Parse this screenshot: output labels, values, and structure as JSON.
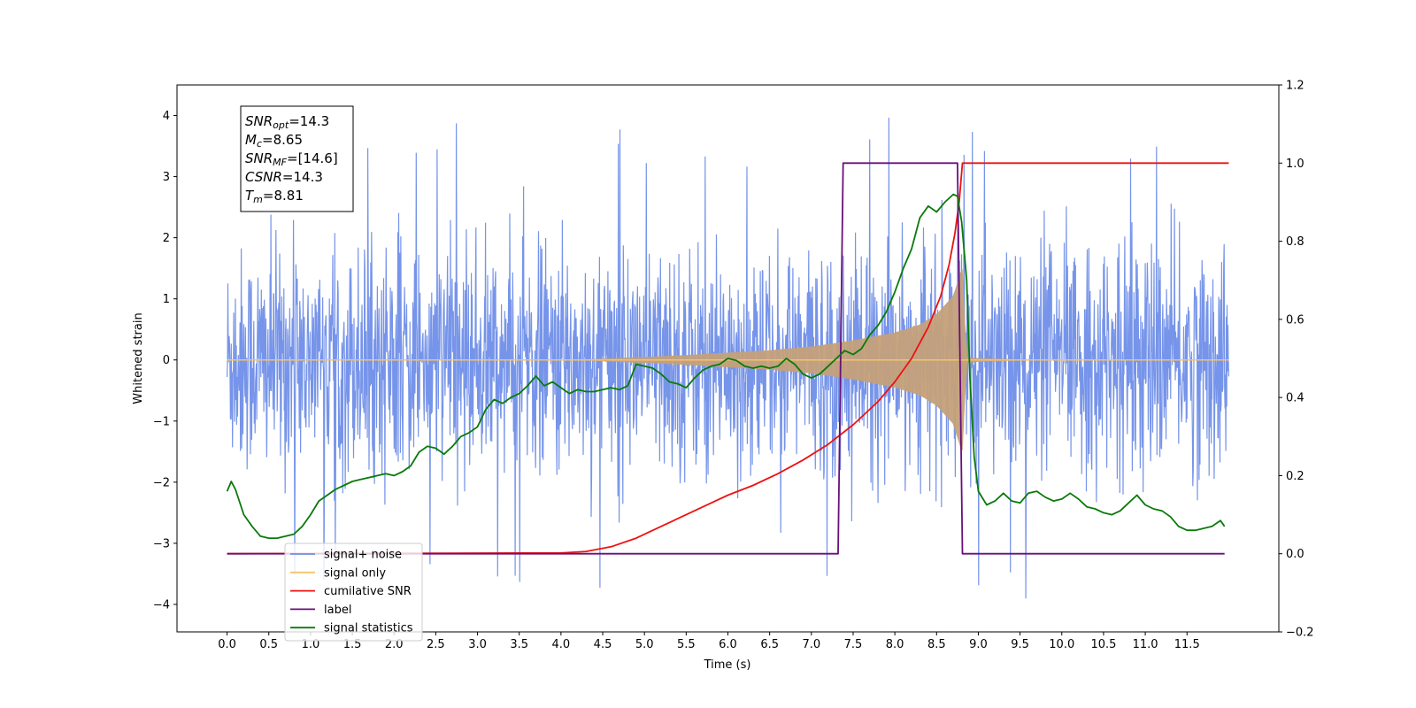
{
  "chart_data": {
    "type": "line",
    "title": "",
    "xlabel": "Time (s)",
    "ylabel": "Whitened strain",
    "y2label": "",
    "xlim": [
      -0.6,
      12.6
    ],
    "ylim": [
      -4.45,
      4.5
    ],
    "y2lim": [
      -0.2,
      1.2
    ],
    "x_ticks": [
      0.0,
      0.5,
      1.0,
      1.5,
      2.0,
      2.5,
      3.0,
      3.5,
      4.0,
      4.5,
      5.0,
      5.5,
      6.0,
      6.5,
      7.0,
      7.5,
      8.0,
      8.5,
      9.0,
      9.5,
      10.0,
      10.5,
      11.0,
      11.5
    ],
    "x_tick_labels": [
      "0.0",
      "0.5",
      "1.0",
      "1.5",
      "2.0",
      "2.5",
      "3.0",
      "3.5",
      "4.0",
      "4.5",
      "5.0",
      "5.5",
      "6.0",
      "6.5",
      "7.0",
      "7.5",
      "8.0",
      "8.5",
      "9.0",
      "9.5",
      "10.0",
      "10.5",
      "11.0",
      "11.5"
    ],
    "y_ticks": [
      -4,
      -3,
      -2,
      -1,
      0,
      1,
      2,
      3,
      4
    ],
    "y_tick_labels": [
      "−4",
      "−3",
      "−2",
      "−1",
      "0",
      "1",
      "2",
      "3",
      "4"
    ],
    "y2_ticks": [
      -0.2,
      0.0,
      0.2,
      0.4,
      0.6,
      0.8,
      1.0,
      1.2
    ],
    "y2_tick_labels": [
      "−0.2",
      "0.0",
      "0.2",
      "0.4",
      "0.6",
      "0.8",
      "1.0",
      "1.2"
    ],
    "grid": false,
    "legend_position": "lower-left",
    "annotation_lines": [
      {
        "base": "SNR",
        "sub": "opt",
        "rest": "=14.3"
      },
      {
        "base": "M",
        "sub": "c",
        "rest": "=8.65"
      },
      {
        "base": "SNR",
        "sub": "MF",
        "rest": "=[14.6]"
      },
      {
        "base": "CSNR",
        "sub": "",
        "rest": "=14.3"
      },
      {
        "base": "T",
        "sub": "m",
        "rest": "=8.81"
      }
    ],
    "series": [
      {
        "name": "signal+ noise",
        "axis": "left",
        "color": "#6f8ee8",
        "kind": "noise",
        "x_range": [
          0.0,
          12.0
        ],
        "amplitude_std": 0.9,
        "max": 4.12,
        "min": -4.05
      },
      {
        "name": "signal only",
        "axis": "left",
        "color": "#f5c26b",
        "fill_color": "#c4a07a",
        "kind": "chirp",
        "x_range": [
          0.0,
          12.0
        ],
        "peak_time": 8.81,
        "envelope": [
          [
            4.3,
            0.01
          ],
          [
            5.0,
            0.05
          ],
          [
            5.5,
            0.08
          ],
          [
            6.0,
            0.12
          ],
          [
            6.5,
            0.16
          ],
          [
            7.0,
            0.22
          ],
          [
            7.5,
            0.32
          ],
          [
            8.0,
            0.45
          ],
          [
            8.3,
            0.58
          ],
          [
            8.5,
            0.75
          ],
          [
            8.7,
            1.05
          ],
          [
            8.81,
            1.55
          ],
          [
            8.86,
            0.05
          ],
          [
            9.0,
            0.03
          ],
          [
            9.5,
            0.01
          ]
        ]
      },
      {
        "name": "cumilative SNR",
        "axis": "right",
        "color": "#ee1111",
        "points": [
          [
            0.0,
            0.0
          ],
          [
            4.0,
            0.002
          ],
          [
            4.3,
            0.006
          ],
          [
            4.6,
            0.018
          ],
          [
            4.9,
            0.04
          ],
          [
            5.2,
            0.07
          ],
          [
            5.5,
            0.1
          ],
          [
            5.8,
            0.13
          ],
          [
            6.0,
            0.15
          ],
          [
            6.3,
            0.175
          ],
          [
            6.6,
            0.205
          ],
          [
            6.9,
            0.24
          ],
          [
            7.2,
            0.28
          ],
          [
            7.5,
            0.33
          ],
          [
            7.8,
            0.39
          ],
          [
            8.0,
            0.44
          ],
          [
            8.2,
            0.5
          ],
          [
            8.4,
            0.58
          ],
          [
            8.55,
            0.66
          ],
          [
            8.65,
            0.74
          ],
          [
            8.72,
            0.82
          ],
          [
            8.77,
            0.9
          ],
          [
            8.81,
            1.0
          ],
          [
            12.0,
            1.0
          ]
        ]
      },
      {
        "name": "label",
        "axis": "right",
        "color": "#6a0f7a",
        "points": [
          [
            0.0,
            0.0
          ],
          [
            7.32,
            0.0
          ],
          [
            7.38,
            1.0
          ],
          [
            8.75,
            1.0
          ],
          [
            8.81,
            0.0
          ],
          [
            11.95,
            0.0
          ]
        ]
      },
      {
        "name": "signal statistics",
        "axis": "right",
        "color": "#0a7a0a",
        "points": [
          [
            0.0,
            0.16
          ],
          [
            0.05,
            0.185
          ],
          [
            0.1,
            0.165
          ],
          [
            0.2,
            0.1
          ],
          [
            0.3,
            0.07
          ],
          [
            0.4,
            0.045
          ],
          [
            0.5,
            0.04
          ],
          [
            0.6,
            0.04
          ],
          [
            0.7,
            0.045
          ],
          [
            0.8,
            0.05
          ],
          [
            0.9,
            0.07
          ],
          [
            1.0,
            0.1
          ],
          [
            1.1,
            0.135
          ],
          [
            1.2,
            0.15
          ],
          [
            1.3,
            0.165
          ],
          [
            1.4,
            0.175
          ],
          [
            1.5,
            0.185
          ],
          [
            1.6,
            0.19
          ],
          [
            1.7,
            0.195
          ],
          [
            1.8,
            0.2
          ],
          [
            1.9,
            0.205
          ],
          [
            2.0,
            0.2
          ],
          [
            2.1,
            0.21
          ],
          [
            2.2,
            0.225
          ],
          [
            2.3,
            0.26
          ],
          [
            2.4,
            0.275
          ],
          [
            2.5,
            0.27
          ],
          [
            2.6,
            0.255
          ],
          [
            2.7,
            0.275
          ],
          [
            2.8,
            0.3
          ],
          [
            2.9,
            0.31
          ],
          [
            3.0,
            0.325
          ],
          [
            3.1,
            0.37
          ],
          [
            3.2,
            0.395
          ],
          [
            3.3,
            0.385
          ],
          [
            3.4,
            0.4
          ],
          [
            3.5,
            0.41
          ],
          [
            3.6,
            0.43
          ],
          [
            3.7,
            0.455
          ],
          [
            3.8,
            0.43
          ],
          [
            3.9,
            0.44
          ],
          [
            4.0,
            0.425
          ],
          [
            4.1,
            0.41
          ],
          [
            4.2,
            0.42
          ],
          [
            4.3,
            0.415
          ],
          [
            4.4,
            0.415
          ],
          [
            4.5,
            0.42
          ],
          [
            4.6,
            0.425
          ],
          [
            4.7,
            0.42
          ],
          [
            4.8,
            0.43
          ],
          [
            4.9,
            0.485
          ],
          [
            5.0,
            0.48
          ],
          [
            5.1,
            0.475
          ],
          [
            5.2,
            0.46
          ],
          [
            5.3,
            0.44
          ],
          [
            5.4,
            0.435
          ],
          [
            5.5,
            0.425
          ],
          [
            5.6,
            0.45
          ],
          [
            5.7,
            0.47
          ],
          [
            5.8,
            0.48
          ],
          [
            5.9,
            0.485
          ],
          [
            6.0,
            0.5
          ],
          [
            6.1,
            0.495
          ],
          [
            6.2,
            0.48
          ],
          [
            6.3,
            0.475
          ],
          [
            6.4,
            0.48
          ],
          [
            6.5,
            0.475
          ],
          [
            6.6,
            0.48
          ],
          [
            6.7,
            0.5
          ],
          [
            6.8,
            0.485
          ],
          [
            6.9,
            0.46
          ],
          [
            7.0,
            0.45
          ],
          [
            7.1,
            0.46
          ],
          [
            7.2,
            0.48
          ],
          [
            7.3,
            0.5
          ],
          [
            7.4,
            0.52
          ],
          [
            7.5,
            0.51
          ],
          [
            7.6,
            0.525
          ],
          [
            7.7,
            0.56
          ],
          [
            7.8,
            0.585
          ],
          [
            7.9,
            0.62
          ],
          [
            8.0,
            0.67
          ],
          [
            8.1,
            0.73
          ],
          [
            8.2,
            0.78
          ],
          [
            8.3,
            0.86
          ],
          [
            8.4,
            0.89
          ],
          [
            8.5,
            0.875
          ],
          [
            8.6,
            0.9
          ],
          [
            8.7,
            0.92
          ],
          [
            8.75,
            0.915
          ],
          [
            8.8,
            0.85
          ],
          [
            8.86,
            0.7
          ],
          [
            8.9,
            0.45
          ],
          [
            8.95,
            0.25
          ],
          [
            9.0,
            0.16
          ],
          [
            9.1,
            0.125
          ],
          [
            9.2,
            0.135
          ],
          [
            9.3,
            0.155
          ],
          [
            9.4,
            0.135
          ],
          [
            9.5,
            0.13
          ],
          [
            9.6,
            0.155
          ],
          [
            9.7,
            0.16
          ],
          [
            9.8,
            0.145
          ],
          [
            9.9,
            0.135
          ],
          [
            10.0,
            0.14
          ],
          [
            10.1,
            0.155
          ],
          [
            10.2,
            0.14
          ],
          [
            10.3,
            0.12
          ],
          [
            10.4,
            0.115
          ],
          [
            10.5,
            0.105
          ],
          [
            10.6,
            0.1
          ],
          [
            10.7,
            0.11
          ],
          [
            10.8,
            0.13
          ],
          [
            10.9,
            0.15
          ],
          [
            11.0,
            0.125
          ],
          [
            11.1,
            0.115
          ],
          [
            11.2,
            0.11
          ],
          [
            11.3,
            0.095
          ],
          [
            11.4,
            0.07
          ],
          [
            11.5,
            0.06
          ],
          [
            11.6,
            0.06
          ],
          [
            11.7,
            0.065
          ],
          [
            11.8,
            0.07
          ],
          [
            11.9,
            0.085
          ],
          [
            11.95,
            0.07
          ]
        ]
      }
    ]
  }
}
